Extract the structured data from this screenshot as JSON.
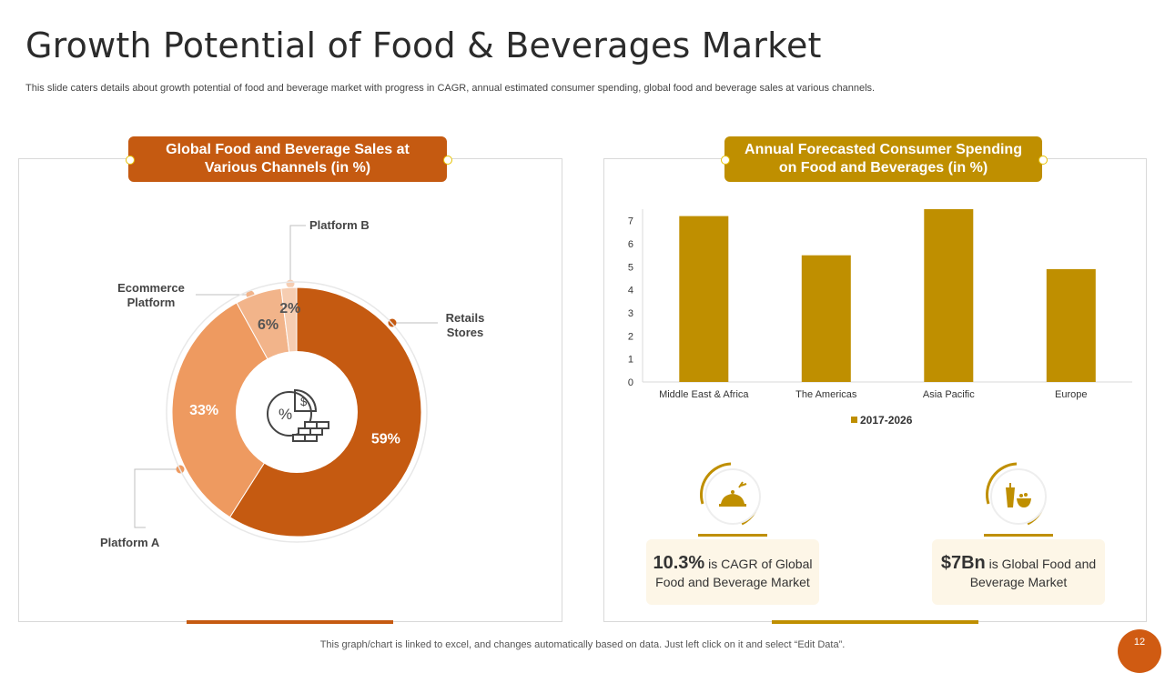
{
  "title": "Growth Potential of Food & Beverages Market",
  "subtitle": "This slide caters details about growth potential of food and beverage market with progress in CAGR, annual estimated consumer spending, global food and beverage sales at various channels.",
  "left_panel": {
    "header": "Global Food and Beverage Sales at Various Channels (in %)",
    "callouts": {
      "platform_b": "Platform B",
      "ecommerce": "Ecommerce Platform",
      "retail": "Retails Stores",
      "platform_a": "Platform A"
    }
  },
  "right_panel": {
    "header": "Annual Forecasted Consumer Spending on Food and Beverages (in %)"
  },
  "stats": [
    {
      "big": "10.3%",
      "text": "is CAGR of Global Food and Beverage Market"
    },
    {
      "big": "$7Bn",
      "text": "is Global Food and Beverage Market"
    }
  ],
  "footer_note": "This graph/chart is linked to excel, and changes automatically based on data. Just left click on it and select “Edit Data”.",
  "page_number": "12",
  "colors": {
    "orange": "#c55a11",
    "gold": "#bf8f00",
    "donut": [
      "#c55a11",
      "#ee9a60",
      "#f2b48a",
      "#f6cdb1"
    ]
  },
  "chart_data": [
    {
      "type": "pie",
      "variant": "donut",
      "title": "Global Food and Beverage Sales at Various Channels (in %)",
      "categories": [
        "Retails Stores",
        "Platform A",
        "Ecommerce Platform",
        "Platform B"
      ],
      "values": [
        59,
        33,
        6,
        2
      ],
      "labels": [
        "59%",
        "33%",
        "6%",
        "2%"
      ]
    },
    {
      "type": "bar",
      "title": "Annual Forecasted Consumer Spending on Food and Beverages (in %)",
      "categories": [
        "Middle East & Africa",
        "The Americas",
        "Asia Pacific",
        "Europe"
      ],
      "series": [
        {
          "name": "2017-2026",
          "values": [
            7.2,
            5.5,
            7.5,
            4.9
          ]
        }
      ],
      "ylim": [
        0,
        7.5
      ],
      "yticks": [
        0,
        1,
        2,
        3,
        4,
        5,
        6,
        7
      ],
      "legend": "bottom"
    }
  ]
}
